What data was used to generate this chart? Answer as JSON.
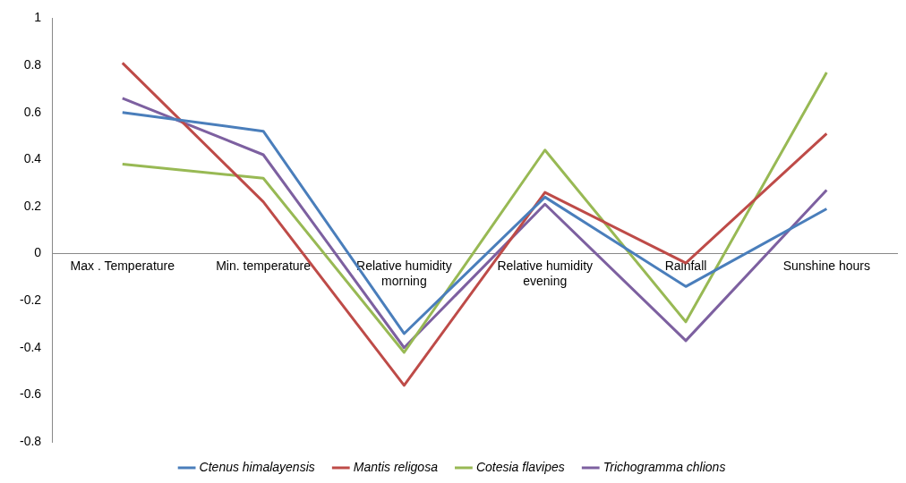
{
  "chart_data": {
    "type": "line",
    "categories": [
      "Max . Temperature",
      "Min. temperature",
      "Relative humidity morning",
      "Relative humidity evening",
      "Rainfall",
      "Sunshine hours"
    ],
    "series": [
      {
        "name": "Ctenus himalayensis",
        "color": "#4a7ebb",
        "values": [
          0.6,
          0.52,
          -0.34,
          0.24,
          -0.14,
          0.19
        ]
      },
      {
        "name": "Mantis religosa",
        "color": "#be4b48",
        "values": [
          0.81,
          0.22,
          -0.56,
          0.26,
          -0.04,
          0.51
        ]
      },
      {
        "name": "Cotesia flavipes",
        "color": "#98b954",
        "values": [
          0.38,
          0.32,
          -0.42,
          0.44,
          -0.29,
          0.77
        ]
      },
      {
        "name": "Trichogramma chlions",
        "color": "#7d60a0",
        "values": [
          0.66,
          0.42,
          -0.4,
          0.21,
          -0.37,
          0.27
        ]
      }
    ],
    "ylim": [
      -0.8,
      1
    ],
    "yticks": [
      -0.8,
      -0.6,
      -0.4,
      -0.2,
      0,
      0.2,
      0.4,
      0.6,
      0.8,
      1
    ],
    "grid": false,
    "legend": "bottom",
    "marker": "none",
    "line_style": "solid"
  }
}
